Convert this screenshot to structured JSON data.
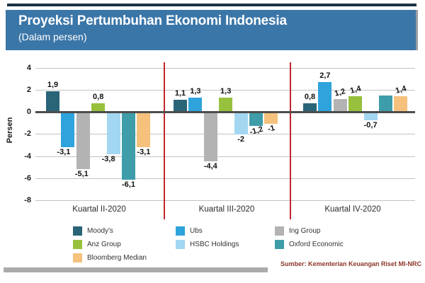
{
  "colors": {
    "header_bg": "#3B76A8",
    "top_rule": "#1A3348",
    "separator": "#C1272D",
    "grid": "#C3C3C3",
    "zero_line": "#4D4D4D",
    "footer_bar": "#ABABAB",
    "source_text": "#8B3626",
    "label_text": "#111111"
  },
  "header": {
    "title": "Proyeksi Pertumbuhan Ekonomi Indonesia",
    "subtitle": "(Dalam persen)"
  },
  "chart_data": {
    "type": "bar",
    "title": "Proyeksi Pertumbuhan Ekonomi Indonesia (Dalam persen)",
    "xlabel": "",
    "ylabel": "Persen",
    "ylim": [
      -8,
      4
    ],
    "yticks": [
      4,
      2,
      0,
      -2,
      -4,
      -6,
      -8
    ],
    "grid": true,
    "legend_position": "bottom",
    "categories": [
      "Kuartal II-2020",
      "Kuartal III-2020",
      "Kuartal IV-2020"
    ],
    "series": [
      {
        "name": "Moody's",
        "color": "#2A6477",
        "values": [
          1.9,
          1.1,
          0.8
        ],
        "labels": [
          "1,9",
          "1,1",
          "0,8"
        ]
      },
      {
        "name": "Ubs",
        "color": "#2FA3DC",
        "values": [
          -3.1,
          1.3,
          2.7
        ],
        "labels": [
          "-3,1",
          "1,3",
          "2,7"
        ]
      },
      {
        "name": "Ing Group",
        "color": "#B3B3B3",
        "values": [
          -5.1,
          -4.4,
          1.2
        ],
        "labels": [
          "-5,1",
          "-4,4",
          "1,2"
        ]
      },
      {
        "name": "Anz Group",
        "color": "#97C13C",
        "values": [
          0.8,
          1.3,
          1.4
        ],
        "labels": [
          "0,8",
          "1,3",
          "1,4"
        ]
      },
      {
        "name": "HSBC Holdings",
        "color": "#A3D6F0",
        "values": [
          -3.8,
          -2,
          -0.7
        ],
        "labels": [
          "-3,8",
          "-2",
          "-0,7"
        ]
      },
      {
        "name": "Oxford Economic",
        "color": "#3E9DA8",
        "values": [
          -6.1,
          -1.2,
          1.5
        ],
        "labels": [
          "-6,1",
          "-1,2",
          ""
        ]
      },
      {
        "name": "Bloomberg Median",
        "color": "#F5C17D",
        "values": [
          -3.1,
          -1,
          1.4
        ],
        "labels": [
          "-3,1",
          "-1",
          "1,4"
        ]
      }
    ]
  },
  "legend": {
    "columns": [
      [
        "Moody's",
        "Anz Group",
        "Bloomberg Median"
      ],
      [
        "Ubs",
        "HSBC Holdings"
      ],
      [
        "Ing Group",
        "Oxford Economic"
      ]
    ]
  },
  "footer": {
    "source": "Sumber: Kementerian Keuangan Riset MI-NRC"
  }
}
